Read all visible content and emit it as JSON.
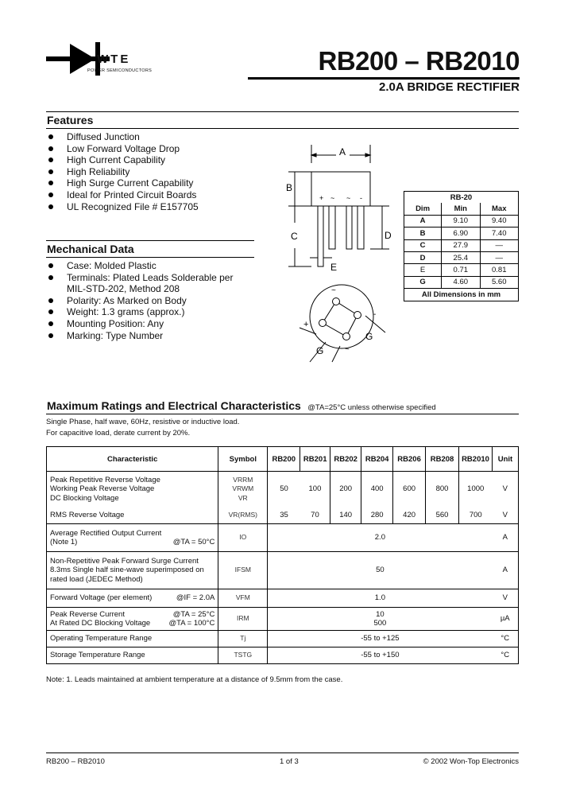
{
  "logo": {
    "text": "WTE",
    "tagline": "POWER SEMICONDUCTORS"
  },
  "header": {
    "title": "RB200 – RB2010",
    "subtitle": "2.0A BRIDGE RECTIFIER"
  },
  "features": {
    "title": "Features",
    "items": [
      "Diffused Junction",
      "Low Forward Voltage Drop",
      "High Current Capability",
      "High Reliability",
      "High Surge Current Capability",
      "Ideal for Printed Circuit Boards",
      "UL Recognized File # E157705"
    ]
  },
  "mechanical": {
    "title": "Mechanical Data",
    "items": [
      "Case: Molded Plastic",
      "Terminals: Plated Leads Solderable per MIL-STD-202, Method 208",
      "Polarity: As Marked on Body",
      "Weight: 1.3 grams (approx.)",
      "Mounting Position: Any",
      "Marking: Type Number"
    ]
  },
  "drawing": {
    "labels": {
      "A": "A",
      "B": "B",
      "C": "C",
      "D": "D",
      "E": "E",
      "G": "G",
      "plus": "+",
      "tilde": "~",
      "minus": "-"
    }
  },
  "dimensions": {
    "package": "RB-20",
    "headers": [
      "Dim",
      "Min",
      "Max"
    ],
    "rows": [
      [
        "A",
        "9.10",
        "9.40"
      ],
      [
        "B",
        "6.90",
        "7.40"
      ],
      [
        "C",
        "27.9",
        "—"
      ],
      [
        "D",
        "25.4",
        "—"
      ],
      [
        "E",
        "0.71",
        "0.81"
      ],
      [
        "G",
        "4.60",
        "5.60"
      ]
    ],
    "footer": "All Dimensions in mm"
  },
  "ratings": {
    "title": "Maximum Ratings and Electrical Characteristics",
    "condition": "@TA=25°C unless otherwise specified",
    "notes": [
      "Single Phase, half wave, 60Hz, resistive or inductive load.",
      "For capacitive load, derate current by 20%."
    ],
    "headers": [
      "Characteristic",
      "Symbol",
      "RB200",
      "RB201",
      "RB202",
      "RB204",
      "RB206",
      "RB208",
      "RB2010",
      "Unit"
    ],
    "r1": {
      "chars": [
        "Peak Repetitive Reverse Voltage",
        "Working Peak Reverse Voltage",
        "DC Blocking Voltage"
      ],
      "syms": [
        "VRRM",
        "VRWM",
        "VR"
      ],
      "values": [
        "50",
        "100",
        "200",
        "400",
        "600",
        "800",
        "1000"
      ],
      "unit": "V"
    },
    "r2": {
      "char": "RMS Reverse Voltage",
      "sym": "VR(RMS)",
      "values": [
        "35",
        "70",
        "140",
        "280",
        "420",
        "560",
        "700"
      ],
      "unit": "V"
    },
    "r3": {
      "char": "Average Rectified Output Current",
      "char2": "(Note 1)",
      "cond": "@TA = 50°C",
      "sym": "IO",
      "value": "2.0",
      "unit": "A"
    },
    "r4": {
      "chars": [
        "Non-Repetitive Peak Forward Surge Current",
        "8.3ms Single half sine-wave superimposed on",
        "rated load (JEDEC Method)"
      ],
      "sym": "IFSM",
      "value": "50",
      "unit": "A"
    },
    "r5": {
      "char": "Forward Voltage (per element)",
      "cond": "@IF = 2.0A",
      "sym": "VFM",
      "value": "1.0",
      "unit": "V"
    },
    "r6": {
      "chars": [
        "Peak Reverse Current",
        "At Rated DC Blocking Voltage"
      ],
      "conds": [
        "@TA = 25°C",
        "@TA = 100°C"
      ],
      "sym": "IRM",
      "values": [
        "10",
        "500"
      ],
      "unit": "µA"
    },
    "r7": {
      "char": "Operating Temperature Range",
      "sym": "Tj",
      "value": "-55 to +125",
      "unit": "°C"
    },
    "r8": {
      "char": "Storage Temperature Range",
      "sym": "TSTG",
      "value": "-55 to +150",
      "unit": "°C"
    },
    "footnote": "Note:  1. Leads maintained at ambient temperature at a distance of 9.5mm from the case."
  },
  "footer": {
    "left": "RB200 – RB2010",
    "center": "1 of 3",
    "right": "© 2002 Won-Top Electronics"
  }
}
